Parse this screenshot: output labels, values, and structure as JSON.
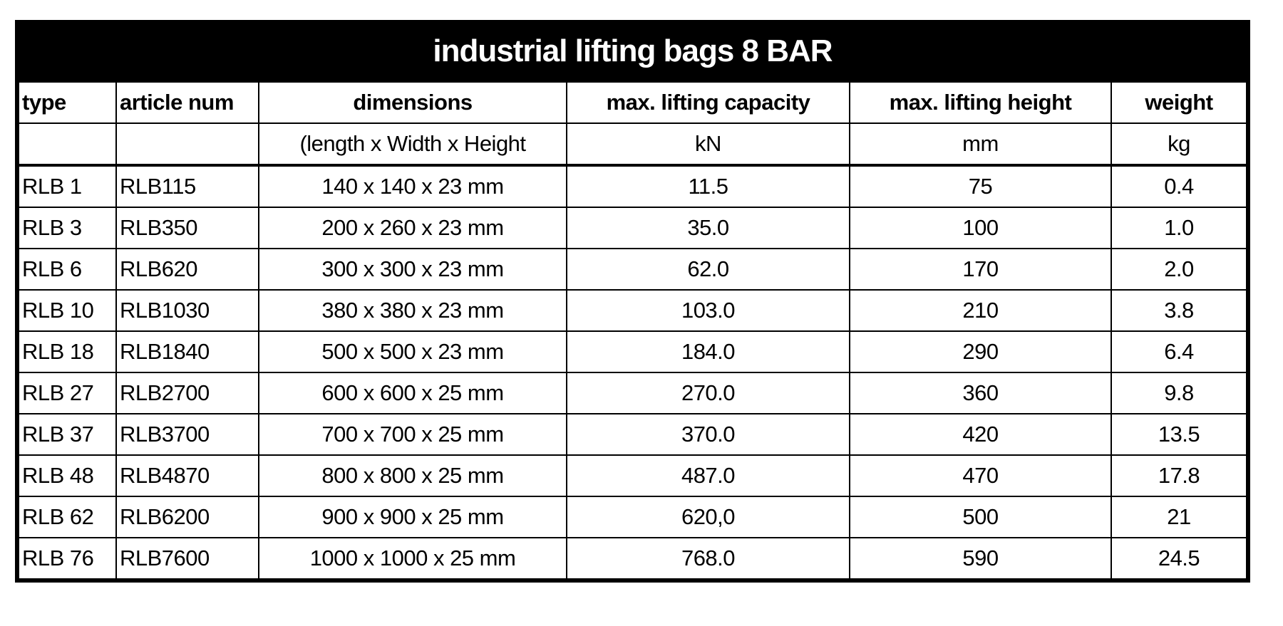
{
  "title": "industrial lifting bags 8 BAR",
  "headers": [
    "type",
    "article num",
    "dimensions",
    "max. lifting capacity",
    "max. lifting height",
    "weight"
  ],
  "units": [
    "",
    "",
    "(length x Width x Height",
    "kN",
    "mm",
    "kg"
  ],
  "rows": [
    [
      "RLB 1",
      "RLB115",
      "140 x 140 x 23 mm",
      "11.5",
      "75",
      "0.4"
    ],
    [
      "RLB 3",
      "RLB350",
      "200 x 260 x 23 mm",
      "35.0",
      "100",
      "1.0"
    ],
    [
      "RLB 6",
      "RLB620",
      "300 x 300 x 23 mm",
      "62.0",
      "170",
      "2.0"
    ],
    [
      "RLB 10",
      "RLB1030",
      "380 x 380 x 23 mm",
      "103.0",
      "210",
      "3.8"
    ],
    [
      "RLB 18",
      "RLB1840",
      "500 x 500 x 23 mm",
      "184.0",
      "290",
      "6.4"
    ],
    [
      "RLB 27",
      "RLB2700",
      "600 x 600 x 25 mm",
      "270.0",
      "360",
      "9.8"
    ],
    [
      "RLB 37",
      "RLB3700",
      "700 x 700 x 25 mm",
      "370.0",
      "420",
      "13.5"
    ],
    [
      "RLB 48",
      "RLB4870",
      "800 x 800 x 25 mm",
      "487.0",
      "470",
      "17.8"
    ],
    [
      "RLB 62",
      "RLB6200",
      "900 x 900 x 25 mm",
      "620,0",
      "500",
      "21"
    ],
    [
      "RLB 76",
      "RLB7600",
      "1000 x 1000 x 25 mm",
      "768.0",
      "590",
      "24.5"
    ]
  ]
}
